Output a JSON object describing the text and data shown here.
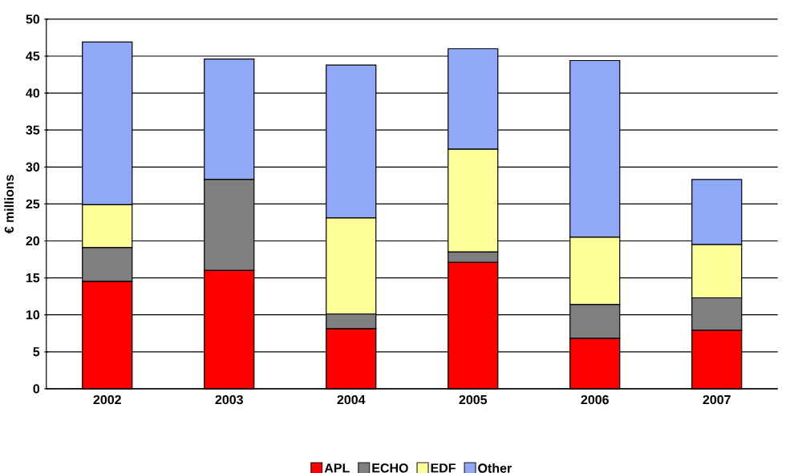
{
  "chart_data": {
    "type": "bar",
    "stacked": true,
    "ylabel": "€ millions",
    "categories": [
      "2002",
      "2003",
      "2004",
      "2005",
      "2006",
      "2007"
    ],
    "series": [
      {
        "name": "APL",
        "color": "#ff0000",
        "values": [
          14.5,
          16.0,
          8.1,
          17.1,
          6.8,
          7.9
        ]
      },
      {
        "name": "ECHO",
        "color": "#7f7f7f",
        "values": [
          4.6,
          12.3,
          2.0,
          1.4,
          4.6,
          4.4
        ]
      },
      {
        "name": "EDF",
        "color": "#ffff99",
        "values": [
          5.8,
          0,
          13.0,
          13.9,
          9.1,
          7.2
        ]
      },
      {
        "name": "Other",
        "color": "#8fa9f7",
        "values": [
          22.0,
          16.3,
          20.7,
          13.6,
          23.9,
          8.8
        ]
      }
    ],
    "ylim": [
      0,
      50
    ],
    "yticks": [
      0,
      5,
      10,
      15,
      20,
      25,
      30,
      35,
      40,
      45,
      50
    ],
    "grid": "y",
    "legend": "bottom"
  }
}
